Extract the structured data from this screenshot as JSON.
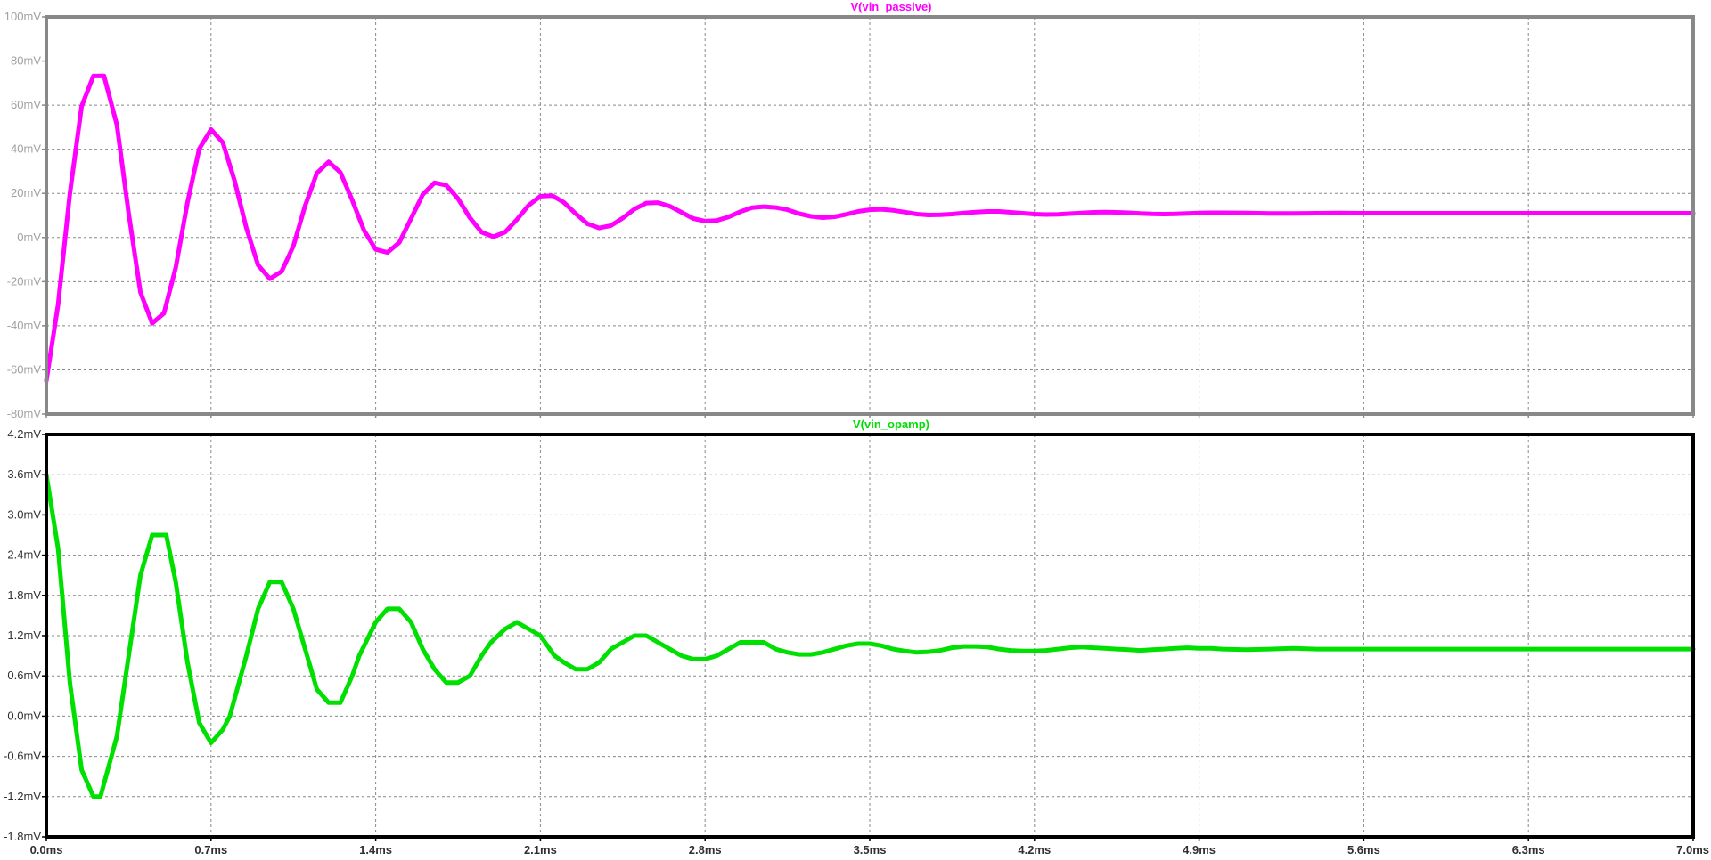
{
  "colors": {
    "background": "#ffffff",
    "grid": "#888888",
    "top_frame": "#888888",
    "bottom_frame": "#000000",
    "top_tick_labels": "#a0a0a0",
    "bottom_tick_labels": "#303030"
  },
  "chart_data": [
    {
      "type": "line",
      "title": "V(vin_passive)",
      "title_color": "#ff00ff",
      "grid": true,
      "xlim": [
        0.0,
        7.0
      ],
      "ylim": [
        -80,
        100
      ],
      "yticks": [
        {
          "value": 100,
          "label": "100mV"
        },
        {
          "value": 80,
          "label": "80mV"
        },
        {
          "value": 60,
          "label": "60mV"
        },
        {
          "value": 40,
          "label": "40mV"
        },
        {
          "value": 20,
          "label": "20mV"
        },
        {
          "value": 0,
          "label": "0mV"
        },
        {
          "value": -20,
          "label": "-20mV"
        },
        {
          "value": -40,
          "label": "-40mV"
        },
        {
          "value": -60,
          "label": "-60mV"
        },
        {
          "value": -80,
          "label": "-80mV"
        }
      ],
      "series": [
        {
          "color": "#ff00ff",
          "x": [
            0.0,
            0.05,
            0.1,
            0.15,
            0.2,
            0.245,
            0.3,
            0.35,
            0.4,
            0.45,
            0.5,
            0.55,
            0.6,
            0.65,
            0.7,
            0.75,
            0.8,
            0.85,
            0.9,
            0.95,
            1.0,
            1.05,
            1.1,
            1.15,
            1.2,
            1.25,
            1.3,
            1.35,
            1.4,
            1.45,
            1.5,
            1.55,
            1.6,
            1.65,
            1.7,
            1.75,
            1.8,
            1.85,
            1.9,
            1.95,
            2.0,
            2.05,
            2.1,
            2.15,
            2.2,
            2.25,
            2.3,
            2.35,
            2.4,
            2.45,
            2.5,
            2.55,
            2.6,
            2.65,
            2.7,
            2.75,
            2.8,
            2.85,
            2.9,
            2.95,
            3.0,
            3.05,
            3.1,
            3.15,
            3.2,
            3.25,
            3.3,
            3.35,
            3.4,
            3.45,
            3.5,
            3.55,
            3.6,
            3.65,
            3.7,
            3.75,
            3.8,
            3.85,
            3.9,
            3.95,
            4.0,
            4.05,
            4.1,
            4.15,
            4.2,
            4.25,
            4.3,
            4.35,
            4.4,
            4.45,
            4.5,
            4.55,
            4.6,
            4.65,
            4.7,
            4.75,
            4.8,
            4.85,
            4.9,
            4.95,
            5.0,
            5.1,
            5.2,
            5.3,
            5.4,
            5.5,
            5.6,
            5.7,
            5.8,
            5.9,
            6.0,
            6.2,
            6.4,
            6.6,
            6.8,
            7.0
          ],
          "values": [
            -65.0,
            -30.4,
            19.9,
            59.5,
            73.2,
            73.3,
            51.0,
            10.9,
            -24.8,
            -38.9,
            -34.3,
            -13.6,
            15.9,
            40.2,
            49.0,
            43.1,
            25.8,
            4.4,
            -12.5,
            -18.7,
            -15.4,
            -3.9,
            14.4,
            29.2,
            34.3,
            29.5,
            17.0,
            3.3,
            -5.4,
            -6.8,
            -2.3,
            8.5,
            19.5,
            24.8,
            23.7,
            17.6,
            9.0,
            2.4,
            0.3,
            2.4,
            8.1,
            14.6,
            18.7,
            19.0,
            15.9,
            10.8,
            6.2,
            4.3,
            5.4,
            8.8,
            12.9,
            15.6,
            15.8,
            14.2,
            11.4,
            8.6,
            7.4,
            7.7,
            9.3,
            11.7,
            13.5,
            14.0,
            13.6,
            12.6,
            10.8,
            9.6,
            9.0,
            9.4,
            10.5,
            11.8,
            12.6,
            12.8,
            12.3,
            11.5,
            10.6,
            10.2,
            10.3,
            10.6,
            11.1,
            11.5,
            11.8,
            11.8,
            11.4,
            11.0,
            10.6,
            10.4,
            10.5,
            10.8,
            11.1,
            11.4,
            11.5,
            11.4,
            11.2,
            10.9,
            10.7,
            10.6,
            10.7,
            10.9,
            11.1,
            11.2,
            11.2,
            11.1,
            10.9,
            10.9,
            11.0,
            11.1,
            11.0,
            11.0,
            11.0,
            11.0,
            11.0,
            11.0,
            11.0,
            11.0,
            11.0,
            11.0
          ]
        }
      ]
    },
    {
      "type": "line",
      "title": "V(vin_opamp)",
      "title_color": "#00e000",
      "grid": true,
      "xlim": [
        0.0,
        7.0
      ],
      "ylim": [
        -1.8,
        4.2
      ],
      "yticks": [
        {
          "value": 4.2,
          "label": "4.2mV"
        },
        {
          "value": 3.6,
          "label": "3.6mV"
        },
        {
          "value": 3.0,
          "label": "3.0mV"
        },
        {
          "value": 2.4,
          "label": "2.4mV"
        },
        {
          "value": 1.8,
          "label": "1.8mV"
        },
        {
          "value": 1.2,
          "label": "1.2mV"
        },
        {
          "value": 0.6,
          "label": "0.6mV"
        },
        {
          "value": 0.0,
          "label": "0.0mV"
        },
        {
          "value": -0.6,
          "label": "-0.6mV"
        },
        {
          "value": -1.2,
          "label": "-1.2mV"
        },
        {
          "value": -1.8,
          "label": "-1.8mV"
        }
      ],
      "xticks": [
        {
          "value": 0.0,
          "label": "0.0ms"
        },
        {
          "value": 0.7,
          "label": "0.7ms"
        },
        {
          "value": 1.4,
          "label": "1.4ms"
        },
        {
          "value": 2.1,
          "label": "2.1ms"
        },
        {
          "value": 2.8,
          "label": "2.8ms"
        },
        {
          "value": 3.5,
          "label": "3.5ms"
        },
        {
          "value": 4.2,
          "label": "4.2ms"
        },
        {
          "value": 4.9,
          "label": "4.9ms"
        },
        {
          "value": 5.6,
          "label": "5.6ms"
        },
        {
          "value": 6.3,
          "label": "6.3ms"
        },
        {
          "value": 7.0,
          "label": "7.0ms"
        }
      ],
      "series": [
        {
          "color": "#00e000",
          "x": [
            0.0,
            0.05,
            0.1,
            0.15,
            0.2,
            0.23,
            0.3,
            0.35,
            0.4,
            0.45,
            0.51,
            0.55,
            0.6,
            0.65,
            0.7,
            0.75,
            0.78,
            0.85,
            0.9,
            0.95,
            1.0,
            1.05,
            1.1,
            1.15,
            1.2,
            1.25,
            1.3,
            1.33,
            1.4,
            1.45,
            1.5,
            1.55,
            1.6,
            1.65,
            1.7,
            1.75,
            1.8,
            1.85,
            1.89,
            1.95,
            2.0,
            2.05,
            2.1,
            2.16,
            2.2,
            2.25,
            2.3,
            2.35,
            2.4,
            2.45,
            2.5,
            2.55,
            2.6,
            2.65,
            2.7,
            2.75,
            2.8,
            2.85,
            2.9,
            2.95,
            3.0,
            3.05,
            3.1,
            3.15,
            3.2,
            3.25,
            3.3,
            3.35,
            3.4,
            3.45,
            3.5,
            3.55,
            3.6,
            3.65,
            3.7,
            3.75,
            3.8,
            3.85,
            3.9,
            3.95,
            4.0,
            4.05,
            4.1,
            4.15,
            4.2,
            4.25,
            4.3,
            4.35,
            4.4,
            4.45,
            4.5,
            4.55,
            4.6,
            4.65,
            4.7,
            4.75,
            4.8,
            4.85,
            4.9,
            4.95,
            5.0,
            5.1,
            5.2,
            5.3,
            5.4,
            5.5,
            5.6,
            5.7,
            5.8,
            5.9,
            6.0,
            6.2,
            6.4,
            6.6,
            6.8,
            7.0
          ],
          "values": [
            3.6,
            2.5,
            0.5,
            -0.8,
            -1.2,
            -1.2,
            -0.3,
            0.9,
            2.1,
            2.7,
            2.7,
            2.0,
            0.8,
            -0.1,
            -0.4,
            -0.2,
            0.0,
            0.9,
            1.6,
            2.0,
            2.0,
            1.6,
            1.0,
            0.4,
            0.2,
            0.2,
            0.6,
            0.9,
            1.4,
            1.6,
            1.6,
            1.4,
            1.0,
            0.7,
            0.5,
            0.5,
            0.6,
            0.9,
            1.1,
            1.3,
            1.4,
            1.3,
            1.2,
            0.9,
            0.8,
            0.7,
            0.7,
            0.8,
            1.0,
            1.1,
            1.2,
            1.2,
            1.1,
            1.0,
            0.9,
            0.85,
            0.85,
            0.9,
            1.0,
            1.1,
            1.1,
            1.1,
            1.0,
            0.95,
            0.92,
            0.92,
            0.95,
            1.0,
            1.05,
            1.08,
            1.08,
            1.05,
            1.0,
            0.97,
            0.95,
            0.96,
            0.98,
            1.02,
            1.04,
            1.04,
            1.03,
            1.0,
            0.98,
            0.97,
            0.97,
            0.98,
            1.0,
            1.02,
            1.03,
            1.02,
            1.01,
            1.0,
            0.99,
            0.98,
            0.99,
            1.0,
            1.01,
            1.02,
            1.01,
            1.01,
            1.0,
            0.99,
            1.0,
            1.01,
            1.0,
            1.0,
            1.0,
            1.0,
            1.0,
            1.0,
            1.0,
            1.0,
            1.0,
            1.0,
            1.0,
            1.0
          ]
        }
      ]
    }
  ]
}
